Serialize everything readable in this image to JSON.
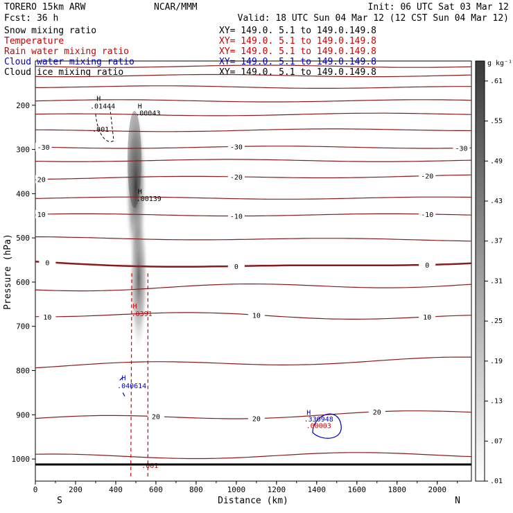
{
  "header": {
    "model": "TORERO  15km ARW",
    "center": "NCAR/MMM",
    "init": "Init: 06 UTC Sat 03 Mar 12",
    "fcst": "Fcst:   36 h",
    "valid": "Valid: 18 UTC Sun 04 Mar 12 (12 CST Sun 04 Mar 12)"
  },
  "legend": [
    {
      "name": "Snow mixing ratio",
      "color": "#000000",
      "xy": "XY= 149.0.  5.1 to 149.0.149.8"
    },
    {
      "name": "Temperature",
      "color": "#cc0000",
      "xy": "XY= 149.0.  5.1 to 149.0.149.8"
    },
    {
      "name": "Rain water mixing ratio",
      "color": "#cc0000",
      "xy": "XY= 149.0.  5.1 to 149.0.149.8"
    },
    {
      "name": "Cloud water mixing ratio",
      "color": "#0000cc",
      "xy": "XY= 149.0.  5.1 to 149.0.149.8"
    },
    {
      "name": "Cloud ice mixing ratio",
      "color": "#000000",
      "xy": "XY= 149.0.  5.1 to 149.0.149.8"
    }
  ],
  "axis": {
    "ylabel": "Pressure (hPa)",
    "xlabel": "Distance (km)",
    "left_dir": "S",
    "right_dir": "N"
  },
  "colorbar": {
    "unit": "g kg⁻¹",
    "ticks": [
      ".61",
      ".55",
      ".49",
      ".43",
      ".37",
      ".31",
      ".25",
      ".19",
      ".13",
      ".07",
      ".01"
    ],
    "min": 0.01,
    "max": 0.64,
    "dark": "#3a3a3a",
    "light": "#ffffff"
  },
  "colors": {
    "temperature": "#8b1a1a",
    "rain": "#cc0000",
    "cloud_water": "#0000cc",
    "snow": "#000000"
  },
  "chart_data": {
    "type": "cross-section",
    "x": {
      "label": "Distance (km)",
      "range": [
        0,
        2170
      ],
      "ticks": [
        0,
        200,
        400,
        600,
        800,
        1000,
        1200,
        1400,
        1600,
        1800,
        2000
      ]
    },
    "y": {
      "label": "Pressure (hPa)",
      "range": [
        100,
        1050
      ],
      "ticks": [
        200,
        300,
        400,
        500,
        600,
        700,
        800,
        900,
        1000
      ]
    },
    "isotherms": [
      {
        "temp": -60,
        "p_left": 112,
        "p_right": 112,
        "label": false
      },
      {
        "temp": -55,
        "p_left": 133,
        "p_right": 133,
        "label": false
      },
      {
        "temp": -50,
        "p_left": 158,
        "p_right": 160,
        "label": false
      },
      {
        "temp": -45,
        "p_left": 190,
        "p_right": 190,
        "label": false
      },
      {
        "temp": -40,
        "p_left": 222,
        "p_right": 220,
        "label": false
      },
      {
        "temp": -35,
        "p_left": 258,
        "p_right": 255,
        "label": false
      },
      {
        "temp": -30,
        "p_left": 295,
        "p_right": 295,
        "label": true,
        "label_x": [
          40,
          1000,
          2120
        ]
      },
      {
        "temp": -25,
        "p_left": 325,
        "p_right": 325,
        "label": false
      },
      {
        "temp": -20,
        "p_left": 365,
        "p_right": 360,
        "label": true,
        "label_x": [
          20,
          1000,
          1950
        ]
      },
      {
        "temp": -15,
        "p_left": 410,
        "p_right": 410,
        "label": false
      },
      {
        "temp": -10,
        "p_left": 448,
        "p_right": 448,
        "label": true,
        "label_x": [
          20,
          1000,
          1950
        ]
      },
      {
        "temp": -5,
        "p_left": 500,
        "p_right": 505,
        "label": false
      },
      {
        "temp": 0,
        "p_left": 555,
        "p_right": 555,
        "label": true,
        "label_x": [
          60,
          1000,
          1950
        ],
        "bold": true
      },
      {
        "temp": 5,
        "p_left": 615,
        "p_right": 605,
        "label": false
      },
      {
        "temp": 10,
        "p_left": 672,
        "p_right": 680,
        "label": true,
        "label_x": [
          60,
          1100,
          1950
        ]
      },
      {
        "temp": 15,
        "p_left": 790,
        "p_right": 775,
        "label": false
      },
      {
        "temp": 20,
        "p_left": 910,
        "p_right": 895,
        "label": true,
        "label_x": [
          600,
          1100,
          1700
        ]
      },
      {
        "temp": 25,
        "p_left": 995,
        "p_right": 990,
        "label": false
      }
    ],
    "labels": {
      "minus30": "-30",
      "minus20": "-20",
      "minus10": "-10",
      "zero": "0",
      "plus10": "10",
      "plus20": "20"
    },
    "annotations": [
      {
        "text": "H",
        "x": 315,
        "p": 190,
        "color": "#000000"
      },
      {
        "text": ".01444",
        "x": 335,
        "p": 207,
        "color": "#000000"
      },
      {
        "text": "H",
        "x": 520,
        "p": 207,
        "color": "#000000"
      },
      {
        "text": ".00043",
        "x": 560,
        "p": 223,
        "color": "#000000"
      },
      {
        "text": ".001",
        "x": 325,
        "p": 260,
        "color": "#000000"
      },
      {
        "text": "H",
        "x": 520,
        "p": 400,
        "color": "#000000"
      },
      {
        "text": ".00139",
        "x": 565,
        "p": 417,
        "color": "#000000"
      },
      {
        "text": "H",
        "x": 495,
        "p": 660,
        "color": "#cc0000"
      },
      {
        "text": ".0391",
        "x": 530,
        "p": 677,
        "color": "#cc0000"
      },
      {
        "text": "H",
        "x": 440,
        "p": 822,
        "color": "#0000cc"
      },
      {
        "text": ".040614",
        "x": 480,
        "p": 840,
        "color": "#0000cc"
      },
      {
        "text": "H",
        "x": 1360,
        "p": 900,
        "color": "#0000cc"
      },
      {
        "text": ".330948",
        "x": 1410,
        "p": 915,
        "color": "#0000cc"
      },
      {
        "text": ".00003",
        "x": 1410,
        "p": 930,
        "color": "#cc0000"
      },
      {
        "text": ".001",
        "x": 570,
        "p": 1020,
        "color": "#cc0000"
      }
    ]
  }
}
